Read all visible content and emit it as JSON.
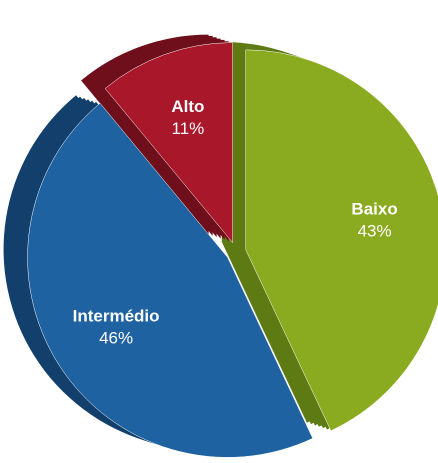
{
  "chart_data": {
    "type": "pie",
    "categories": [
      "Baixo",
      "Intermédio",
      "Alto"
    ],
    "values": [
      43,
      46,
      11
    ],
    "value_labels": [
      "43%",
      "46%",
      "11%"
    ],
    "colors": [
      "#8aab1f",
      "#1f62a1",
      "#a9172a"
    ],
    "side_colors": [
      "#5e7a12",
      "#123f6b",
      "#6e0f1b"
    ]
  }
}
